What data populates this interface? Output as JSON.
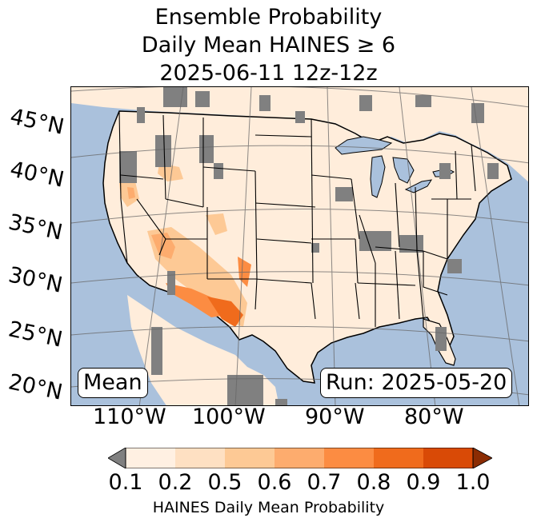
{
  "title": {
    "line1": "Ensemble Probability",
    "line2": "Daily Mean HAINES ≥ 6",
    "line3": "2025-06-11 12z-12z"
  },
  "lat_labels": [
    "45°N",
    "40°N",
    "35°N",
    "30°N",
    "25°N",
    "20°N"
  ],
  "lon_labels": [
    "110°W",
    "100°W",
    "90°W",
    "80°W"
  ],
  "stat_box": "Mean",
  "run_box": "Run: 2025-05-20",
  "colorbar": {
    "ticks": [
      "0.1",
      "0.2",
      "0.5",
      "0.6",
      "0.7",
      "0.8",
      "0.9",
      "1.0"
    ],
    "label": "HAINES Daily Mean Probability",
    "colors": [
      "#fff0e2",
      "#fee0c2",
      "#fdc995",
      "#fdac6e",
      "#fc8c42",
      "#f06b1c",
      "#d94a06"
    ],
    "under_color": "#808080",
    "over_color": "#8b2c03"
  },
  "colors": {
    "ocean": "#aac1dc",
    "land": "#ffeddb",
    "no_data": "#808080",
    "border": "#000000",
    "graticule": "#666666"
  }
}
